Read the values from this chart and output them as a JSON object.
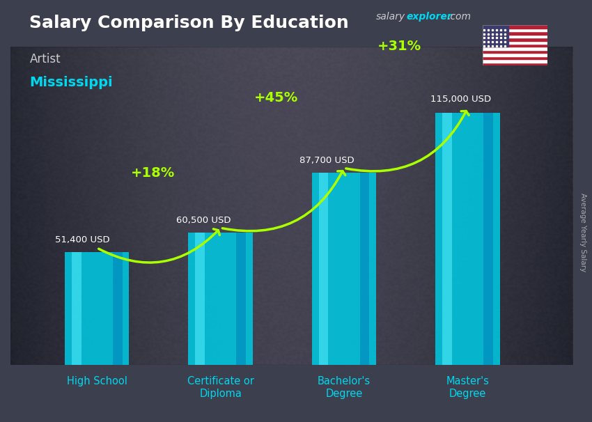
{
  "title": "Salary Comparison By Education",
  "subtitle_job": "Artist",
  "subtitle_location": "Mississippi",
  "ylabel": "Average Yearly Salary",
  "categories": [
    "High School",
    "Certificate or\nDiploma",
    "Bachelor's\nDegree",
    "Master's\nDegree"
  ],
  "values": [
    51400,
    60500,
    87700,
    115000
  ],
  "value_labels": [
    "51,400 USD",
    "60,500 USD",
    "87,700 USD",
    "115,000 USD"
  ],
  "pct_labels": [
    "+18%",
    "+45%",
    "+31%"
  ],
  "bar_color_main": "#00c8e0",
  "bar_color_light": "#40e0f0",
  "bar_color_dark": "#0088bb",
  "title_color": "#ffffff",
  "subtitle_job_color": "#cccccc",
  "subtitle_location_color": "#00d8f0",
  "value_label_color": "#ffffff",
  "pct_label_color": "#aaff00",
  "arrow_color": "#aaff00",
  "xlabel_color": "#00d8f0",
  "ylabel_color": "#aaaaaa",
  "brand_salary_color": "#cccccc",
  "brand_explorer_color": "#00d8f0",
  "brand_com_color": "#cccccc",
  "ylim": [
    0,
    145000
  ],
  "bar_width": 0.52,
  "bg_colors": [
    "#3a3d4a",
    "#4a4d5a",
    "#3a3d4a"
  ],
  "overlay_alpha": 0.55
}
